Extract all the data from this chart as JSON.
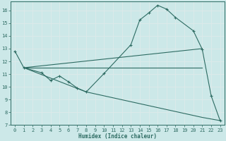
{
  "bg_color": "#cce8e8",
  "grid_color": "#e8f4f4",
  "line_color": "#2d6b62",
  "xlabel": "Humidex (Indice chaleur)",
  "xlim": [
    -0.5,
    23.5
  ],
  "ylim": [
    7,
    16.7
  ],
  "yticks": [
    7,
    8,
    9,
    10,
    11,
    12,
    13,
    14,
    15,
    16
  ],
  "xticks": [
    0,
    1,
    2,
    3,
    4,
    5,
    6,
    7,
    8,
    9,
    10,
    11,
    12,
    13,
    14,
    15,
    16,
    17,
    18,
    19,
    20,
    21,
    22,
    23
  ],
  "curve1_x": [
    0,
    1,
    3,
    4,
    5,
    6,
    7,
    8,
    10,
    13,
    14,
    15,
    16,
    17,
    18,
    20,
    21,
    22,
    23
  ],
  "curve1_y": [
    12.8,
    11.5,
    11.1,
    10.5,
    10.85,
    10.4,
    9.9,
    9.6,
    11.05,
    13.3,
    15.25,
    15.8,
    16.4,
    16.1,
    15.45,
    14.4,
    12.95,
    9.3,
    7.35
  ],
  "curve2_x": [
    1,
    21
  ],
  "curve2_y": [
    11.5,
    11.5
  ],
  "curve3_x": [
    1,
    21
  ],
  "curve3_y": [
    11.5,
    13.0
  ],
  "curve4_x": [
    1,
    8,
    21,
    23
  ],
  "curve4_y": [
    11.5,
    9.6,
    7.6,
    7.35
  ],
  "figsize": [
    3.2,
    2.0
  ],
  "dpi": 100
}
